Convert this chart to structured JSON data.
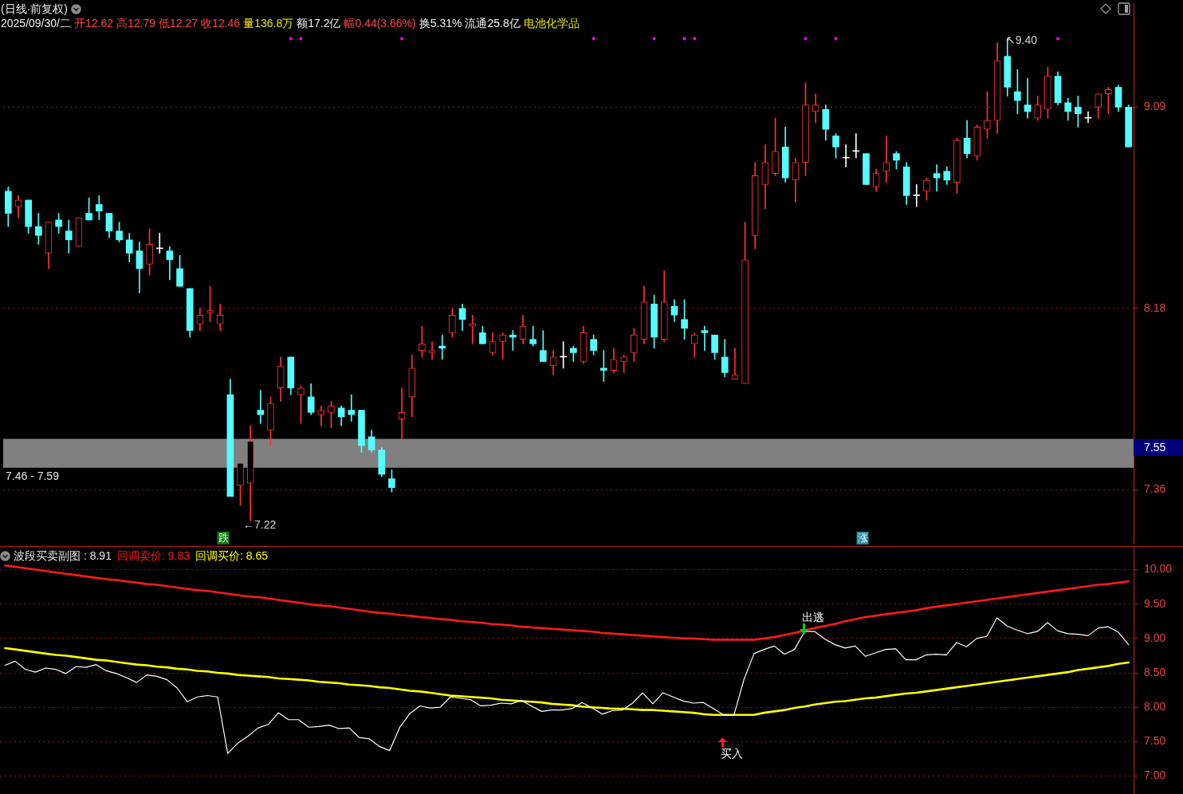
{
  "chart_data": [
    {
      "type": "candlestick",
      "title": "(日线·前复权)",
      "annotations": [
        "2025/09/30/二",
        "开12.62",
        "高12.79",
        "低12.27",
        "收12.46",
        "量136.8万",
        "额17.2亿",
        "幅0.44(3.66%)",
        "换5.31%",
        "流通25.8亿",
        "电池化学品",
        "←7.22",
        "↖9.40",
        "跌",
        "涨"
      ],
      "categories": [
        null,
        null,
        null,
        null,
        null,
        null,
        null,
        null,
        null,
        null,
        null,
        null,
        null,
        null,
        null,
        null,
        null,
        null,
        null,
        null,
        null,
        null,
        null,
        null,
        null,
        null,
        null,
        null,
        null,
        null,
        null,
        null,
        null,
        null,
        null,
        null,
        null,
        null,
        null,
        null,
        null,
        null,
        null,
        null,
        null,
        null,
        null,
        null,
        null,
        null,
        null,
        null,
        null,
        null,
        null,
        null,
        null,
        null,
        null,
        null,
        null,
        null,
        null,
        null,
        null,
        null,
        null,
        null,
        null,
        null,
        null,
        null,
        null,
        null,
        null,
        null,
        null,
        null,
        null,
        null,
        null,
        null,
        null,
        null,
        null,
        null,
        null,
        null,
        null,
        null,
        null,
        null,
        null,
        null,
        null,
        null,
        null,
        null,
        null,
        null,
        null,
        null,
        null,
        null,
        null,
        null,
        null,
        null,
        null,
        null,
        null,
        null
      ],
      "ohlc": [
        [
          8.71,
          8.73,
          8.55,
          8.61
        ],
        [
          8.64,
          8.69,
          8.59,
          8.67
        ],
        [
          8.67,
          8.67,
          8.52,
          8.55
        ],
        [
          8.55,
          8.61,
          8.47,
          8.51
        ],
        [
          8.43,
          8.57,
          8.36,
          8.57
        ],
        [
          8.58,
          8.61,
          8.52,
          8.55
        ],
        [
          8.53,
          8.58,
          8.43,
          8.49
        ],
        [
          8.46,
          8.59,
          8.46,
          8.59
        ],
        [
          8.61,
          8.68,
          8.58,
          8.58
        ],
        [
          8.65,
          8.69,
          8.58,
          8.62
        ],
        [
          8.61,
          8.61,
          8.5,
          8.53
        ],
        [
          8.53,
          8.57,
          8.48,
          8.49
        ],
        [
          8.49,
          8.52,
          8.39,
          8.43
        ],
        [
          8.44,
          8.48,
          8.25,
          8.36
        ],
        [
          8.38,
          8.54,
          8.33,
          8.47
        ],
        [
          8.45,
          8.52,
          8.43,
          8.45
        ],
        [
          8.44,
          8.46,
          8.31,
          8.4
        ],
        [
          8.36,
          8.42,
          8.28,
          8.28
        ],
        [
          8.27,
          8.27,
          8.05,
          8.08
        ],
        [
          8.11,
          8.18,
          8.08,
          8.15
        ],
        [
          8.16,
          8.28,
          8.12,
          8.17
        ],
        [
          8.11,
          8.2,
          8.08,
          8.15
        ],
        [
          7.79,
          7.86,
          7.33,
          7.33
        ],
        [
          7.38,
          7.48,
          7.29,
          7.48
        ],
        [
          7.39,
          7.65,
          7.22,
          7.58
        ],
        [
          7.72,
          7.81,
          7.66,
          7.7
        ],
        [
          7.63,
          7.78,
          7.56,
          7.75
        ],
        [
          7.82,
          7.96,
          7.76,
          7.92
        ],
        [
          7.96,
          7.96,
          7.79,
          7.82
        ],
        [
          7.79,
          7.83,
          7.66,
          7.82
        ],
        [
          7.78,
          7.84,
          7.7,
          7.71
        ],
        [
          7.7,
          7.74,
          7.65,
          7.72
        ],
        [
          7.71,
          7.76,
          7.64,
          7.74
        ],
        [
          7.73,
          7.74,
          7.65,
          7.69
        ],
        [
          7.72,
          7.79,
          7.67,
          7.7
        ],
        [
          7.72,
          7.72,
          7.53,
          7.56
        ],
        [
          7.6,
          7.63,
          7.53,
          7.54
        ],
        [
          7.54,
          7.55,
          7.42,
          7.43
        ],
        [
          7.41,
          7.45,
          7.35,
          7.37
        ],
        [
          7.68,
          7.82,
          7.59,
          7.71
        ],
        [
          7.78,
          7.97,
          7.69,
          7.91
        ],
        [
          7.99,
          8.1,
          7.96,
          8.02
        ],
        [
          7.98,
          8.03,
          7.95,
          7.99
        ],
        [
          8.01,
          8.06,
          7.95,
          8
        ],
        [
          8.07,
          8.18,
          8.05,
          8.15
        ],
        [
          8.18,
          8.2,
          8.08,
          8.13
        ],
        [
          8.1,
          8.15,
          8.02,
          8.11
        ],
        [
          8.07,
          8.1,
          8.02,
          8.02
        ],
        [
          7.98,
          8.07,
          7.97,
          8.03
        ],
        [
          8.03,
          8.07,
          7.95,
          8.06
        ],
        [
          8.06,
          8.08,
          7.99,
          8.05
        ],
        [
          8.04,
          8.15,
          8.02,
          8.1
        ],
        [
          8.04,
          8.1,
          8.01,
          8.02
        ],
        [
          7.99,
          8.08,
          7.94,
          7.94
        ],
        [
          7.92,
          7.99,
          7.88,
          7.96
        ],
        [
          7.96,
          8.03,
          7.91,
          7.96
        ],
        [
          8,
          8.01,
          7.94,
          7.98
        ],
        [
          7.94,
          8.1,
          7.93,
          8.07
        ],
        [
          8.04,
          8.06,
          7.97,
          7.99
        ],
        [
          7.91,
          7.99,
          7.85,
          7.9
        ],
        [
          7.9,
          8,
          7.89,
          7.95
        ],
        [
          7.94,
          7.97,
          7.89,
          7.96
        ],
        [
          7.98,
          8.09,
          7.94,
          8.06
        ],
        [
          8.04,
          8.28,
          8.02,
          8.21
        ],
        [
          8.2,
          8.24,
          8,
          8.05
        ],
        [
          8.04,
          8.35,
          8.03,
          8.21
        ],
        [
          8.19,
          8.22,
          8.12,
          8.15
        ],
        [
          8.13,
          8.22,
          8.04,
          8.09
        ],
        [
          8.02,
          8.07,
          7.96,
          8.06
        ],
        [
          8.08,
          8.1,
          7.99,
          8.07
        ],
        [
          8.06,
          8.06,
          7.95,
          7.98
        ],
        [
          7.96,
          8.04,
          7.87,
          7.89
        ],
        [
          7.86,
          8,
          7.86,
          7.88
        ],
        [
          7.84,
          8.57,
          7.84,
          8.4
        ],
        [
          8.51,
          8.84,
          8.45,
          8.78
        ],
        [
          8.74,
          8.92,
          8.63,
          8.84
        ],
        [
          8.79,
          9.04,
          8.78,
          8.89
        ],
        [
          8.91,
          9,
          8.75,
          8.77
        ],
        [
          8.76,
          8.86,
          8.66,
          8.84
        ],
        [
          8.84,
          9.2,
          8.78,
          9.1
        ],
        [
          9.07,
          9.15,
          9.02,
          9.1
        ],
        [
          9.08,
          9.1,
          8.94,
          8.99
        ],
        [
          8.96,
          8.97,
          8.86,
          8.91
        ],
        [
          8.86,
          8.92,
          8.82,
          8.86
        ],
        [
          8.89,
          8.97,
          8.86,
          8.89
        ],
        [
          8.88,
          8.88,
          8.74,
          8.74
        ],
        [
          8.73,
          8.81,
          8.71,
          8.79
        ],
        [
          8.8,
          8.96,
          8.75,
          8.84
        ],
        [
          8.88,
          8.89,
          8.81,
          8.85
        ],
        [
          8.82,
          8.84,
          8.65,
          8.69
        ],
        [
          8.69,
          8.74,
          8.64,
          8.69
        ],
        [
          8.71,
          8.77,
          8.67,
          8.76
        ],
        [
          8.79,
          8.83,
          8.71,
          8.77
        ],
        [
          8.8,
          8.82,
          8.74,
          8.76
        ],
        [
          8.75,
          8.95,
          8.7,
          8.94
        ],
        [
          8.95,
          9.03,
          8.86,
          8.88
        ],
        [
          8.87,
          9.01,
          8.85,
          9
        ],
        [
          8.99,
          9.16,
          8.95,
          9.03
        ],
        [
          9.03,
          9.38,
          8.97,
          9.3
        ],
        [
          9.32,
          9.4,
          9.14,
          9.18
        ],
        [
          9.16,
          9.26,
          9.06,
          9.12
        ],
        [
          9.1,
          9.22,
          9.04,
          9.07
        ],
        [
          9.04,
          9.14,
          9.03,
          9.1
        ],
        [
          9.08,
          9.27,
          9.04,
          9.23
        ],
        [
          9.23,
          9.25,
          9.1,
          9.11
        ],
        [
          9.11,
          9.13,
          9.03,
          9.07
        ],
        [
          9.09,
          9.14,
          9,
          9.06
        ],
        [
          9.04,
          9.07,
          9.02,
          9.04
        ],
        [
          9.09,
          9.15,
          9.04,
          9.15
        ],
        [
          9.15,
          9.18,
          9.06,
          9.17
        ],
        [
          9.18,
          9.19,
          9.07,
          9.09
        ],
        [
          9.09,
          9.1,
          8.91,
          8.91
        ]
      ],
      "colors": [
        "#54fcfc",
        "#ff3232",
        "#54fcfc",
        "#54fcfc",
        "#ff3232",
        "#54fcfc",
        "#54fcfc",
        "#ff3232",
        "#54fcfc",
        "#54fcfc",
        "#54fcfc",
        "#54fcfc",
        "#54fcfc",
        "#54fcfc",
        "#ff3232",
        "#ffffff",
        "#54fcfc",
        "#54fcfc",
        "#54fcfc",
        "#ff3232",
        "#ff3232",
        "#ff3232",
        "#54fcfc",
        "#ff3232",
        "#ff3232",
        "#54fcfc",
        "#ff3232",
        "#ff3232",
        "#54fcfc",
        "#ff3232",
        "#54fcfc",
        "#ff3232",
        "#ff3232",
        "#54fcfc",
        "#54fcfc",
        "#54fcfc",
        "#54fcfc",
        "#54fcfc",
        "#54fcfc",
        "#ff3232",
        "#ff3232",
        "#ff3232",
        "#ff3232",
        "#54fcfc",
        "#ff3232",
        "#54fcfc",
        "#ff3232",
        "#54fcfc",
        "#ff3232",
        "#ff3232",
        "#54fcfc",
        "#ff3232",
        "#54fcfc",
        "#54fcfc",
        "#ff3232",
        "#ffffff",
        "#54fcfc",
        "#ff3232",
        "#54fcfc",
        "#54fcfc",
        "#ff3232",
        "#ff3232",
        "#ff3232",
        "#ff3232",
        "#54fcfc",
        "#ff3232",
        "#54fcfc",
        "#54fcfc",
        "#ff3232",
        "#54fcfc",
        "#54fcfc",
        "#54fcfc",
        "#ff3232",
        "#ff3232",
        "#ff3232",
        "#ff3232",
        "#ff3232",
        "#54fcfc",
        "#ff3232",
        "#ff3232",
        "#ff3232",
        "#54fcfc",
        "#54fcfc",
        "#ffffff",
        "#ffffff",
        "#54fcfc",
        "#ff3232",
        "#ff3232",
        "#54fcfc",
        "#54fcfc",
        "#ffffff",
        "#ff3232",
        "#54fcfc",
        "#54fcfc",
        "#ff3232",
        "#54fcfc",
        "#ff3232",
        "#ff3232",
        "#ff3232",
        "#54fcfc",
        "#54fcfc",
        "#54fcfc",
        "#ff3232",
        "#ff3232",
        "#54fcfc",
        "#54fcfc",
        "#54fcfc",
        "#ffffff",
        "#ff3232",
        "#ff3232",
        "#54fcfc",
        "#54fcfc"
      ],
      "series": [
        {
          "type": "scatter",
          "color": "#ff00ff",
          "values": [
            null,
            null,
            null,
            null,
            null,
            null,
            null,
            null,
            null,
            null,
            null,
            null,
            null,
            null,
            null,
            null,
            null,
            null,
            null,
            null,
            null,
            null,
            null,
            null,
            null,
            null,
            null,
            null,
            9.4,
            9.4,
            null,
            null,
            null,
            null,
            null,
            null,
            null,
            null,
            null,
            9.4,
            null,
            null,
            null,
            null,
            null,
            null,
            null,
            null,
            null,
            null,
            null,
            null,
            null,
            null,
            null,
            null,
            null,
            null,
            9.4,
            null,
            null,
            null,
            null,
            null,
            9.4,
            null,
            null,
            9.4,
            9.4,
            null,
            null,
            null,
            null,
            null,
            null,
            null,
            null,
            null,
            null,
            9.4,
            null,
            null,
            9.4,
            null,
            null,
            null,
            null,
            null,
            null,
            null,
            null,
            null,
            null,
            null,
            null,
            null,
            null,
            null,
            null,
            null,
            null,
            null,
            null,
            null,
            9.4,
            null,
            null,
            null,
            null,
            null,
            null,
            null
          ]
        }
      ],
      "ylim": [
        7.12,
        9.56
      ],
      "yticks": [
        9.09,
        8.18,
        7.55,
        7.36
      ],
      "grid": "y",
      "bands": [
        {
          "axis": "y",
          "from": 7.46,
          "to": 7.59,
          "label": "7.46 - 7.59",
          "color": "#808080"
        }
      ],
      "tick_labels": "y",
      "marker": "square"
    },
    {
      "type": "line",
      "title": "波段买卖副图 : 8.91",
      "categories": [
        null,
        null,
        null,
        null,
        null,
        null,
        null,
        null,
        null,
        null,
        null,
        null,
        null,
        null,
        null,
        null,
        null,
        null,
        null,
        null,
        null,
        null,
        null,
        null,
        null,
        null,
        null,
        null,
        null,
        null,
        null,
        null,
        null,
        null,
        null,
        null,
        null,
        null,
        null,
        null,
        null,
        null,
        null,
        null,
        null,
        null,
        null,
        null,
        null,
        null,
        null,
        null,
        null,
        null,
        null,
        null,
        null,
        null,
        null,
        null,
        null,
        null,
        null,
        null,
        null,
        null,
        null,
        null,
        null,
        null,
        null,
        null,
        null,
        null,
        null,
        null,
        null,
        null,
        null,
        null,
        null,
        null,
        null,
        null,
        null,
        null,
        null,
        null,
        null,
        null,
        null,
        null,
        null,
        null,
        null,
        null,
        null,
        null,
        null,
        null,
        null,
        null,
        null,
        null,
        null,
        null,
        null,
        null,
        null,
        null,
        null,
        null
      ],
      "series": [
        {
          "color": "#ffffff",
          "values": [
            8.61,
            8.67,
            8.55,
            8.51,
            8.57,
            8.55,
            8.49,
            8.59,
            8.58,
            8.62,
            8.53,
            8.49,
            8.43,
            8.36,
            8.47,
            8.45,
            8.4,
            8.28,
            8.08,
            8.15,
            8.17,
            8.15,
            7.33,
            7.48,
            7.58,
            7.7,
            7.75,
            7.92,
            7.82,
            7.82,
            7.71,
            7.72,
            7.74,
            7.69,
            7.7,
            7.56,
            7.54,
            7.43,
            7.37,
            7.71,
            7.91,
            8.02,
            7.99,
            8,
            8.15,
            8.13,
            8.11,
            8.02,
            8.03,
            8.06,
            8.05,
            8.1,
            8.02,
            7.94,
            7.96,
            7.96,
            7.98,
            8.07,
            7.99,
            7.9,
            7.95,
            7.96,
            8.06,
            8.21,
            8.05,
            8.21,
            8.15,
            8.09,
            8.06,
            8.07,
            7.98,
            7.89,
            7.88,
            8.4,
            8.78,
            8.84,
            8.89,
            8.77,
            8.84,
            9.1,
            9.1,
            8.99,
            8.91,
            8.86,
            8.89,
            8.74,
            8.79,
            8.84,
            8.85,
            8.69,
            8.69,
            8.76,
            8.77,
            8.76,
            8.94,
            8.88,
            9,
            9.03,
            9.3,
            9.18,
            9.12,
            9.07,
            9.1,
            9.23,
            9.11,
            9.07,
            9.06,
            9.04,
            9.15,
            9.17,
            9.09,
            8.91
          ]
        },
        {
          "name": "回调卖价: 9.83",
          "color": "#ff1a1a",
          "values": [
            10.06,
            10.04,
            10.02,
            10,
            9.98,
            9.96,
            9.94,
            9.92,
            9.9,
            9.88,
            9.86,
            9.85,
            9.83,
            9.81,
            9.79,
            9.78,
            9.76,
            9.74,
            9.72,
            9.7,
            9.69,
            9.67,
            9.65,
            9.63,
            9.61,
            9.6,
            9.58,
            9.56,
            9.54,
            9.52,
            9.5,
            9.48,
            9.47,
            9.45,
            9.43,
            9.41,
            9.39,
            9.37,
            9.36,
            9.34,
            9.33,
            9.31,
            9.3,
            9.28,
            9.27,
            9.25,
            9.24,
            9.23,
            9.21,
            9.2,
            9.19,
            9.17,
            9.16,
            9.15,
            9.14,
            9.13,
            9.12,
            9.11,
            9.1,
            9.08,
            9.07,
            9.06,
            9.05,
            9.04,
            9.03,
            9.02,
            9.01,
            9,
            9,
            8.99,
            8.98,
            8.98,
            8.98,
            8.98,
            8.98,
            9,
            9.02,
            9.05,
            9.08,
            9.12,
            9.15,
            9.18,
            9.21,
            9.25,
            9.28,
            9.31,
            9.33,
            9.35,
            9.37,
            9.39,
            9.41,
            9.44,
            9.46,
            9.48,
            9.5,
            9.52,
            9.54,
            9.56,
            9.58,
            9.6,
            9.62,
            9.64,
            9.66,
            9.68,
            9.7,
            9.72,
            9.74,
            9.76,
            9.78,
            9.79,
            9.81,
            9.83
          ]
        },
        {
          "name": "回调买价: 8.65",
          "color": "#ffff00",
          "values": [
            8.86,
            8.84,
            8.82,
            8.8,
            8.78,
            8.76,
            8.75,
            8.73,
            8.71,
            8.69,
            8.68,
            8.66,
            8.64,
            8.62,
            8.61,
            8.59,
            8.58,
            8.56,
            8.55,
            8.53,
            8.52,
            8.5,
            8.49,
            8.47,
            8.46,
            8.45,
            8.44,
            8.42,
            8.41,
            8.4,
            8.39,
            8.37,
            8.36,
            8.35,
            8.33,
            8.32,
            8.31,
            8.29,
            8.28,
            8.26,
            8.24,
            8.23,
            8.21,
            8.19,
            8.17,
            8.16,
            8.15,
            8.14,
            8.13,
            8.11,
            8.1,
            8.09,
            8.08,
            8.07,
            8.05,
            8.04,
            8.03,
            8.01,
            8,
            7.99,
            7.98,
            7.98,
            7.97,
            7.96,
            7.96,
            7.95,
            7.94,
            7.93,
            7.92,
            7.9,
            7.89,
            7.89,
            7.89,
            7.89,
            7.89,
            7.92,
            7.94,
            7.96,
            7.99,
            8.01,
            8.04,
            8.06,
            8.08,
            8.09,
            8.11,
            8.13,
            8.14,
            8.16,
            8.18,
            8.2,
            8.21,
            8.23,
            8.25,
            8.27,
            8.29,
            8.31,
            8.33,
            8.35,
            8.37,
            8.39,
            8.41,
            8.43,
            8.45,
            8.47,
            8.49,
            8.51,
            8.54,
            8.56,
            8.58,
            8.6,
            8.63,
            8.65
          ]
        }
      ],
      "ylim": [
        6.74,
        10.33
      ],
      "yticks": [
        {
          "value": 10,
          "label": "10.00"
        },
        {
          "value": 9.5,
          "label": "9.50"
        },
        {
          "value": 9,
          "label": "9.00"
        },
        {
          "value": 8.5,
          "label": "8.50"
        },
        {
          "value": 8,
          "label": "8.00"
        },
        {
          "value": 7.5,
          "label": "7.50"
        },
        {
          "value": 7,
          "label": "7.00"
        }
      ],
      "grid": "y",
      "tick_labels": "y",
      "marker": "none",
      "annotations": [
        "出逃",
        "买入"
      ]
    }
  ]
}
